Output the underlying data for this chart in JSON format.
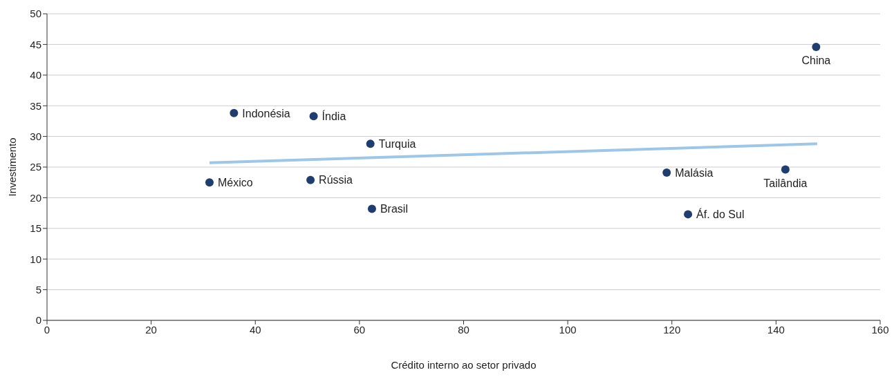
{
  "chart_data": {
    "type": "scatter",
    "xlabel": "Crédito interno ao setor privado",
    "ylabel": "Investimento",
    "series": [
      {
        "color": "#1f3d6e",
        "x": [
          147.7,
          35.9,
          51.2,
          62.1,
          31.2,
          50.6,
          62.4,
          119.0,
          141.8,
          123.1
        ],
        "values": [
          44.6,
          33.8,
          33.3,
          28.8,
          22.5,
          22.9,
          18.2,
          24.1,
          24.6,
          17.3
        ]
      },
      {
        "type": "line",
        "color": "#9dc6e8",
        "x": [
          31.2,
          147.9
        ],
        "values": [
          25.7,
          28.8
        ]
      }
    ],
    "annotations": [
      {
        "text": "China",
        "x": 147.7,
        "y": 44.6
      },
      {
        "text": "Indonésia",
        "x": 35.9,
        "y": 33.8
      },
      {
        "text": "Índia",
        "x": 51.2,
        "y": 33.3
      },
      {
        "text": "Turquia",
        "x": 62.1,
        "y": 28.8
      },
      {
        "text": "México",
        "x": 31.2,
        "y": 22.5
      },
      {
        "text": "Rússia",
        "x": 50.6,
        "y": 22.9
      },
      {
        "text": "Brasil",
        "x": 62.4,
        "y": 18.2
      },
      {
        "text": "Malásia",
        "x": 119.0,
        "y": 24.1
      },
      {
        "text": "Tailândia",
        "x": 141.8,
        "y": 24.6
      },
      {
        "text": "Áf. do Sul",
        "x": 123.1,
        "y": 17.3
      }
    ],
    "xlim": [
      0,
      160
    ],
    "xticks": [
      0,
      20,
      40,
      60,
      80,
      100,
      120,
      140,
      160
    ],
    "ylim": [
      0,
      50
    ],
    "yticks": [
      0,
      5,
      10,
      15,
      20,
      25,
      30,
      35,
      40,
      45,
      50
    ],
    "grid": "y"
  }
}
